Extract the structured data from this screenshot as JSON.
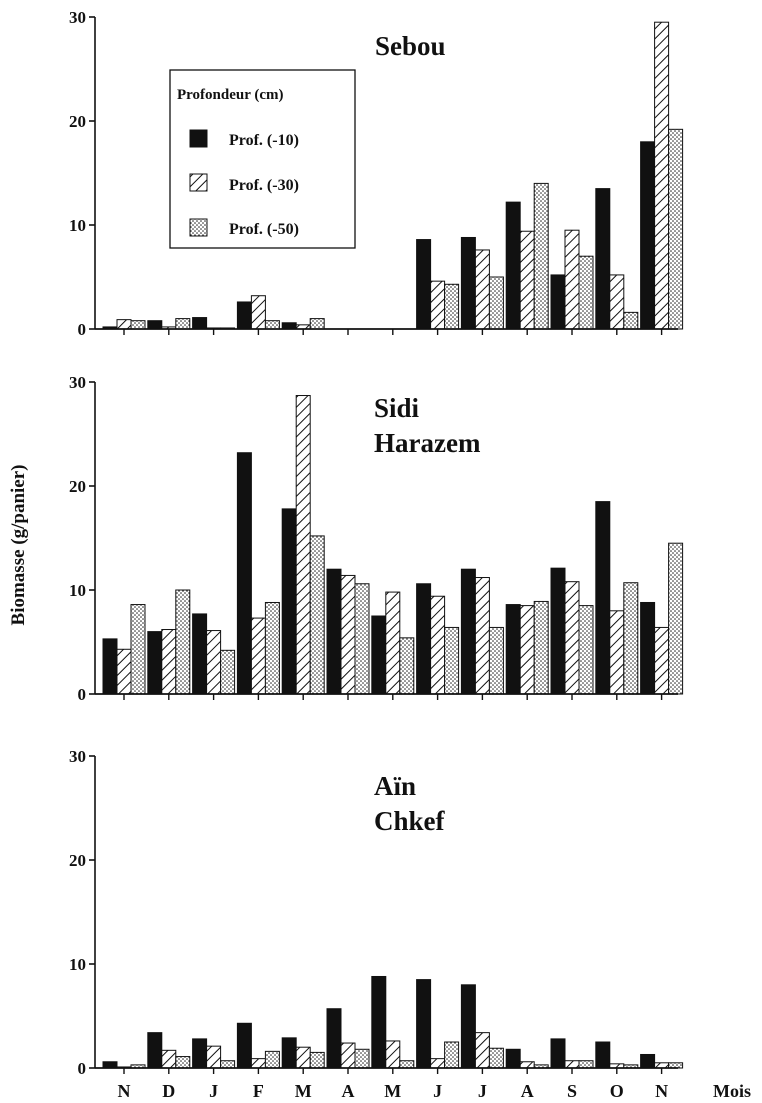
{
  "chart_data": [
    {
      "type": "bar",
      "title": "Sebou",
      "categories": [
        "N",
        "D",
        "J",
        "F",
        "M",
        "A",
        "M",
        "J",
        "J",
        "A",
        "S",
        "O",
        "N"
      ],
      "ylim": [
        0,
        30
      ],
      "yticks": [
        0,
        10,
        20,
        30
      ],
      "series": [
        {
          "name": "Prof. (-10)",
          "pattern": "solid",
          "values": [
            0.2,
            0.8,
            1.1,
            2.6,
            0.6,
            0,
            0,
            8.6,
            8.8,
            12.2,
            5.2,
            13.5,
            18
          ]
        },
        {
          "name": "Prof. (-30)",
          "pattern": "hatched",
          "values": [
            0.9,
            0.2,
            0.1,
            3.2,
            0.4,
            0,
            0,
            4.6,
            7.6,
            9.4,
            9.5,
            5.2,
            29.5
          ]
        },
        {
          "name": "Prof. (-50)",
          "pattern": "dotted",
          "values": [
            0.8,
            1.0,
            0.1,
            0.8,
            1.0,
            0,
            0,
            4.3,
            5.0,
            14.0,
            7.0,
            1.6,
            19.2
          ]
        }
      ],
      "legend": {
        "title": "Profondeur (cm)",
        "position": "top-left"
      }
    },
    {
      "type": "bar",
      "title_lines": [
        "Sidi",
        "Harazem"
      ],
      "categories": [
        "N",
        "D",
        "J",
        "F",
        "M",
        "A",
        "M",
        "J",
        "J",
        "A",
        "S",
        "O",
        "N"
      ],
      "ylim": [
        0,
        30
      ],
      "yticks": [
        0,
        10,
        20,
        30
      ],
      "series": [
        {
          "name": "Prof. (-10)",
          "pattern": "solid",
          "values": [
            5.3,
            6.0,
            7.7,
            23.2,
            17.8,
            12.0,
            7.5,
            10.6,
            12.0,
            8.6,
            12.1,
            18.5,
            8.8
          ]
        },
        {
          "name": "Prof. (-30)",
          "pattern": "hatched",
          "values": [
            4.3,
            6.2,
            6.1,
            7.3,
            28.7,
            11.4,
            9.8,
            9.4,
            11.2,
            8.5,
            10.8,
            8.0,
            6.4
          ]
        },
        {
          "name": "Prof. (-50)",
          "pattern": "dotted",
          "values": [
            8.6,
            10.0,
            4.2,
            8.8,
            15.2,
            10.6,
            5.4,
            6.4,
            6.4,
            8.9,
            8.5,
            10.7,
            14.5
          ]
        }
      ]
    },
    {
      "type": "bar",
      "title_lines": [
        "Aïn",
        "Chkef"
      ],
      "categories": [
        "N",
        "D",
        "J",
        "F",
        "M",
        "A",
        "M",
        "J",
        "J",
        "A",
        "S",
        "O",
        "N"
      ],
      "ylim": [
        0,
        30
      ],
      "yticks": [
        0,
        10,
        20,
        30
      ],
      "xlabel": "Mois",
      "series": [
        {
          "name": "Prof. (-10)",
          "pattern": "solid",
          "values": [
            0.6,
            3.4,
            2.8,
            4.3,
            2.9,
            5.7,
            8.8,
            8.5,
            8.0,
            1.8,
            2.8,
            2.5,
            1.3
          ]
        },
        {
          "name": "Prof. (-30)",
          "pattern": "hatched",
          "values": [
            0.1,
            1.7,
            2.1,
            0.9,
            2.0,
            2.4,
            2.6,
            0.9,
            3.4,
            0.6,
            0.7,
            0.4,
            0.5
          ]
        },
        {
          "name": "Prof. (-50)",
          "pattern": "dotted",
          "values": [
            0.3,
            1.1,
            0.7,
            1.6,
            1.5,
            1.8,
            0.7,
            2.5,
            1.9,
            0.3,
            0.7,
            0.3,
            0.5
          ]
        }
      ]
    }
  ],
  "ylabel": "Biomasse (g/panier)"
}
